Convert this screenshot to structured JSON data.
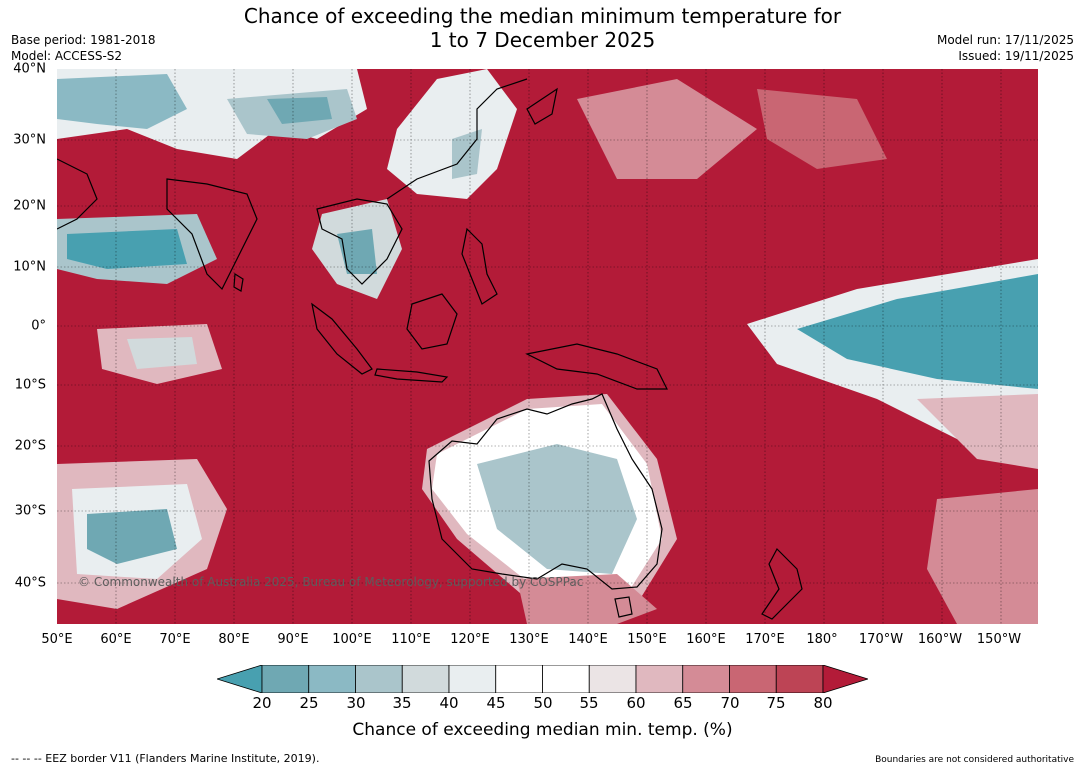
{
  "title": {
    "line1": "Chance of exceeding the median minimum temperature for",
    "line2": "1 to 7 December 2025"
  },
  "meta_left": {
    "base_period": "Base period: 1981-2018",
    "model": "Model: ACCESS-S2"
  },
  "meta_right": {
    "model_run": "Model run: 17/11/2025",
    "issued": "Issued: 19/11/2025"
  },
  "map": {
    "lat_labels": [
      "40°N",
      "30°N",
      "20°N",
      "10°N",
      "0°",
      "10°S",
      "20°S",
      "30°S",
      "40°S"
    ],
    "lon_labels": [
      "50°E",
      "60°E",
      "70°E",
      "80°E",
      "90°E",
      "100°E",
      "110°E",
      "120°E",
      "130°E",
      "140°E",
      "150°E",
      "160°E",
      "170°E",
      "180°",
      "170°W",
      "160°W",
      "150°W"
    ],
    "copyright": "© Commonwealth of Australia 2025, Bureau of Meteorology, supported by COSPPac"
  },
  "colorbar": {
    "ticks": [
      "20",
      "25",
      "30",
      "35",
      "40",
      "45",
      "50",
      "55",
      "60",
      "65",
      "70",
      "75",
      "80"
    ],
    "bin_colors": [
      "#6fa8b3",
      "#8bb9c4",
      "#aac5cb",
      "#d1dadc",
      "#e9eef0",
      "#ffffff",
      "#ffffff",
      "#ebe4e5",
      "#e0b8bf",
      "#d48b96",
      "#c96673",
      "#bd4455"
    ],
    "under_color": "#48a0b0",
    "over_color": "#b31b38",
    "label": "Chance of exceeding median min. temp. (%)"
  },
  "footer": {
    "eez_note": "--  --  -- EEZ border V11 (Flanders Marine Institute, 2019).",
    "boundary_note": "Boundaries are not considered authoritative"
  }
}
